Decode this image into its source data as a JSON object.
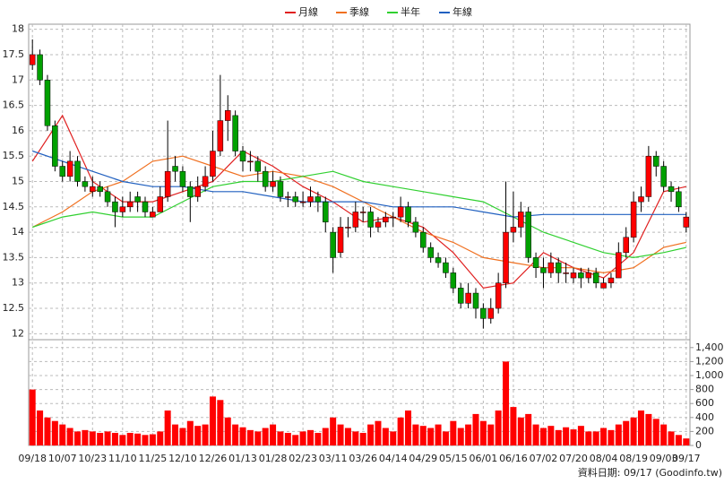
{
  "chart_data": {
    "type": "candlestick",
    "legend": [
      "月線",
      "季線",
      "半年",
      "年線"
    ],
    "footer": "資料日期: 09/17 (Goodinfo.tw)",
    "xlim": [
      -0.5,
      87.5
    ],
    "xticks": [
      {
        "value": 0,
        "label": "09/18"
      },
      {
        "value": 4,
        "label": "10/07"
      },
      {
        "value": 8,
        "label": "10/23"
      },
      {
        "value": 12,
        "label": "11/10"
      },
      {
        "value": 16,
        "label": "11/25"
      },
      {
        "value": 20,
        "label": "12/10"
      },
      {
        "value": 24,
        "label": "12/26"
      },
      {
        "value": 28,
        "label": "01/13"
      },
      {
        "value": 32,
        "label": "01/28"
      },
      {
        "value": 36,
        "label": "02/23"
      },
      {
        "value": 40,
        "label": "03/11"
      },
      {
        "value": 44,
        "label": "03/26"
      },
      {
        "value": 48,
        "label": "04/14"
      },
      {
        "value": 52,
        "label": "04/29"
      },
      {
        "value": 56,
        "label": "05/15"
      },
      {
        "value": 60,
        "label": "06/01"
      },
      {
        "value": 64,
        "label": "06/16"
      },
      {
        "value": 68,
        "label": "07/02"
      },
      {
        "value": 72,
        "label": "07/20"
      },
      {
        "value": 76,
        "label": "08/04"
      },
      {
        "value": 80,
        "label": "08/19"
      },
      {
        "value": 84,
        "label": "09/03"
      },
      {
        "value": 87,
        "label": "09/17"
      }
    ],
    "ylim": [
      11.9,
      18.1
    ],
    "yticks": [
      12,
      12.5,
      13,
      13.5,
      14,
      14.5,
      15,
      15.5,
      16,
      16.5,
      17,
      17.5,
      18
    ],
    "y2lim": [
      0,
      1500
    ],
    "y2ticks": [
      0,
      200,
      400,
      600,
      800,
      {
        "value": 1000,
        "label": "1,000"
      },
      {
        "value": 1200,
        "label": "1,200"
      },
      {
        "value": 1400,
        "label": "1,400"
      }
    ],
    "grid": true,
    "up_color": "#ff0000",
    "down_color": "#00a000",
    "volume_color": "#ff0000",
    "ohlc": [
      [
        17.3,
        17.8,
        17.2,
        17.5
      ],
      [
        17.5,
        17.6,
        16.9,
        17.0
      ],
      [
        17.0,
        17.1,
        16.0,
        16.1
      ],
      [
        16.1,
        16.2,
        15.2,
        15.3
      ],
      [
        15.3,
        15.4,
        15.0,
        15.1
      ],
      [
        15.1,
        15.6,
        15.0,
        15.4
      ],
      [
        15.4,
        15.5,
        14.9,
        15.0
      ],
      [
        15.0,
        15.1,
        14.8,
        14.9
      ],
      [
        14.8,
        15.1,
        14.7,
        14.9
      ],
      [
        14.9,
        15.0,
        14.7,
        14.8
      ],
      [
        14.8,
        14.9,
        14.5,
        14.6
      ],
      [
        14.6,
        14.7,
        14.1,
        14.4
      ],
      [
        14.4,
        14.7,
        14.3,
        14.5
      ],
      [
        14.5,
        14.8,
        14.4,
        14.6
      ],
      [
        14.7,
        14.8,
        14.4,
        14.6
      ],
      [
        14.6,
        14.7,
        14.3,
        14.4
      ],
      [
        14.3,
        14.5,
        14.3,
        14.4
      ],
      [
        14.4,
        14.9,
        14.4,
        14.7
      ],
      [
        14.7,
        16.2,
        14.6,
        15.2
      ],
      [
        15.3,
        15.5,
        15.0,
        15.2
      ],
      [
        15.2,
        15.3,
        14.8,
        14.9
      ],
      [
        14.9,
        15.0,
        14.2,
        14.7
      ],
      [
        14.7,
        15.1,
        14.6,
        14.9
      ],
      [
        14.9,
        15.3,
        14.8,
        15.1
      ],
      [
        15.1,
        16.0,
        15.0,
        15.6
      ],
      [
        15.6,
        17.1,
        15.5,
        16.2
      ],
      [
        16.2,
        16.7,
        15.8,
        16.4
      ],
      [
        16.3,
        16.4,
        15.5,
        15.6
      ],
      [
        15.6,
        15.7,
        15.2,
        15.4
      ],
      [
        15.4,
        15.6,
        15.2,
        15.4
      ],
      [
        15.4,
        15.5,
        15.0,
        15.2
      ],
      [
        15.2,
        15.3,
        14.8,
        14.9
      ],
      [
        14.9,
        15.2,
        14.8,
        15.0
      ],
      [
        15.0,
        15.1,
        14.6,
        14.7
      ],
      [
        14.7,
        14.8,
        14.5,
        14.7
      ],
      [
        14.7,
        14.8,
        14.5,
        14.6
      ],
      [
        14.6,
        14.8,
        14.5,
        14.6
      ],
      [
        14.6,
        14.9,
        14.5,
        14.7
      ],
      [
        14.7,
        14.8,
        14.4,
        14.6
      ],
      [
        14.6,
        14.7,
        14.0,
        14.2
      ],
      [
        14.0,
        14.1,
        13.2,
        13.5
      ],
      [
        13.6,
        14.3,
        13.5,
        14.1
      ],
      [
        14.1,
        14.3,
        13.9,
        14.1
      ],
      [
        14.1,
        14.6,
        14.0,
        14.4
      ],
      [
        14.4,
        14.5,
        14.2,
        14.4
      ],
      [
        14.4,
        14.5,
        13.9,
        14.1
      ],
      [
        14.1,
        14.3,
        14.0,
        14.2
      ],
      [
        14.2,
        14.4,
        14.1,
        14.3
      ],
      [
        14.3,
        14.4,
        14.1,
        14.3
      ],
      [
        14.3,
        14.7,
        14.2,
        14.5
      ],
      [
        14.5,
        14.6,
        14.1,
        14.2
      ],
      [
        14.2,
        14.3,
        13.9,
        14.0
      ],
      [
        14.0,
        14.1,
        13.6,
        13.7
      ],
      [
        13.7,
        13.8,
        13.4,
        13.5
      ],
      [
        13.5,
        13.6,
        13.3,
        13.4
      ],
      [
        13.4,
        13.5,
        13.1,
        13.2
      ],
      [
        13.2,
        13.3,
        12.8,
        12.9
      ],
      [
        12.9,
        13.0,
        12.5,
        12.6
      ],
      [
        12.6,
        13.0,
        12.5,
        12.8
      ],
      [
        12.8,
        12.9,
        12.3,
        12.5
      ],
      [
        12.5,
        12.6,
        12.1,
        12.3
      ],
      [
        12.3,
        12.7,
        12.2,
        12.5
      ],
      [
        12.5,
        13.2,
        12.4,
        13.0
      ],
      [
        13.0,
        15.0,
        12.9,
        14.0
      ],
      [
        14.0,
        14.8,
        13.8,
        14.1
      ],
      [
        14.1,
        14.6,
        13.9,
        14.4
      ],
      [
        14.4,
        14.5,
        13.4,
        13.5
      ],
      [
        13.5,
        13.6,
        13.1,
        13.3
      ],
      [
        13.3,
        13.5,
        12.9,
        13.2
      ],
      [
        13.2,
        13.6,
        13.1,
        13.4
      ],
      [
        13.4,
        13.5,
        13.0,
        13.2
      ],
      [
        13.2,
        13.4,
        13.0,
        13.2
      ],
      [
        13.1,
        13.3,
        13.0,
        13.2
      ],
      [
        13.2,
        13.3,
        12.9,
        13.1
      ],
      [
        13.1,
        13.3,
        13.0,
        13.2
      ],
      [
        13.2,
        13.3,
        12.9,
        13.0
      ],
      [
        12.9,
        13.1,
        12.9,
        13.0
      ],
      [
        13.0,
        13.2,
        12.9,
        13.1
      ],
      [
        13.1,
        13.8,
        13.1,
        13.6
      ],
      [
        13.6,
        14.1,
        13.5,
        13.9
      ],
      [
        13.9,
        14.8,
        13.8,
        14.6
      ],
      [
        14.6,
        14.9,
        14.4,
        14.7
      ],
      [
        14.7,
        15.7,
        14.6,
        15.5
      ],
      [
        15.5,
        15.6,
        15.1,
        15.3
      ],
      [
        15.3,
        15.4,
        14.8,
        14.9
      ],
      [
        14.9,
        15.0,
        14.6,
        14.8
      ],
      [
        14.8,
        14.9,
        14.4,
        14.5
      ],
      [
        14.1,
        14.4,
        14.0,
        14.3
      ]
    ],
    "volume": [
      800,
      500,
      400,
      350,
      300,
      250,
      200,
      220,
      200,
      180,
      200,
      180,
      150,
      180,
      170,
      150,
      160,
      200,
      500,
      300,
      250,
      350,
      280,
      300,
      700,
      650,
      400,
      300,
      260,
      220,
      200,
      250,
      300,
      200,
      180,
      150,
      200,
      220,
      180,
      250,
      400,
      300,
      250,
      200,
      180,
      300,
      350,
      250,
      200,
      400,
      500,
      300,
      280,
      250,
      300,
      200,
      350,
      250,
      300,
      450,
      350,
      300,
      500,
      1200,
      550,
      400,
      450,
      300,
      250,
      280,
      220,
      260,
      230,
      280,
      200,
      200,
      250,
      220,
      300,
      350,
      400,
      500,
      450,
      380,
      300,
      200,
      150,
      100
    ],
    "ma_x": [
      0,
      4,
      8,
      12,
      16,
      20,
      24,
      28,
      32,
      36,
      40,
      44,
      48,
      52,
      56,
      60,
      64,
      68,
      72,
      76,
      80,
      84,
      87
    ],
    "series": [
      {
        "name": "月線",
        "color": "#e02020",
        "values": [
          15.4,
          16.3,
          15.0,
          14.6,
          14.6,
          14.8,
          15.0,
          15.6,
          15.3,
          14.9,
          14.6,
          14.2,
          14.3,
          14.1,
          13.6,
          12.9,
          13.0,
          13.6,
          13.3,
          13.1,
          13.6,
          14.8,
          14.9
        ]
      },
      {
        "name": "季線",
        "color": "#f07020",
        "values": [
          14.1,
          14.4,
          14.8,
          15.0,
          15.4,
          15.5,
          15.3,
          15.1,
          15.2,
          15.1,
          14.9,
          14.6,
          14.3,
          14.0,
          13.8,
          13.5,
          13.4,
          13.3,
          13.3,
          13.2,
          13.3,
          13.7,
          13.8
        ]
      },
      {
        "name": "半年",
        "color": "#30d030",
        "values": [
          14.1,
          14.3,
          14.4,
          14.3,
          14.3,
          14.6,
          14.9,
          15.0,
          15.0,
          15.1,
          15.2,
          15.0,
          14.9,
          14.8,
          14.7,
          14.6,
          14.3,
          14.0,
          13.8,
          13.6,
          13.5,
          13.6,
          13.7
        ]
      },
      {
        "name": "年線",
        "color": "#2060c0",
        "values": [
          15.6,
          15.4,
          15.2,
          15.0,
          14.9,
          14.9,
          14.8,
          14.8,
          14.7,
          14.6,
          14.6,
          14.6,
          14.5,
          14.5,
          14.5,
          14.4,
          14.3,
          14.35,
          14.35,
          14.35,
          14.35,
          14.35,
          14.35
        ]
      }
    ]
  }
}
